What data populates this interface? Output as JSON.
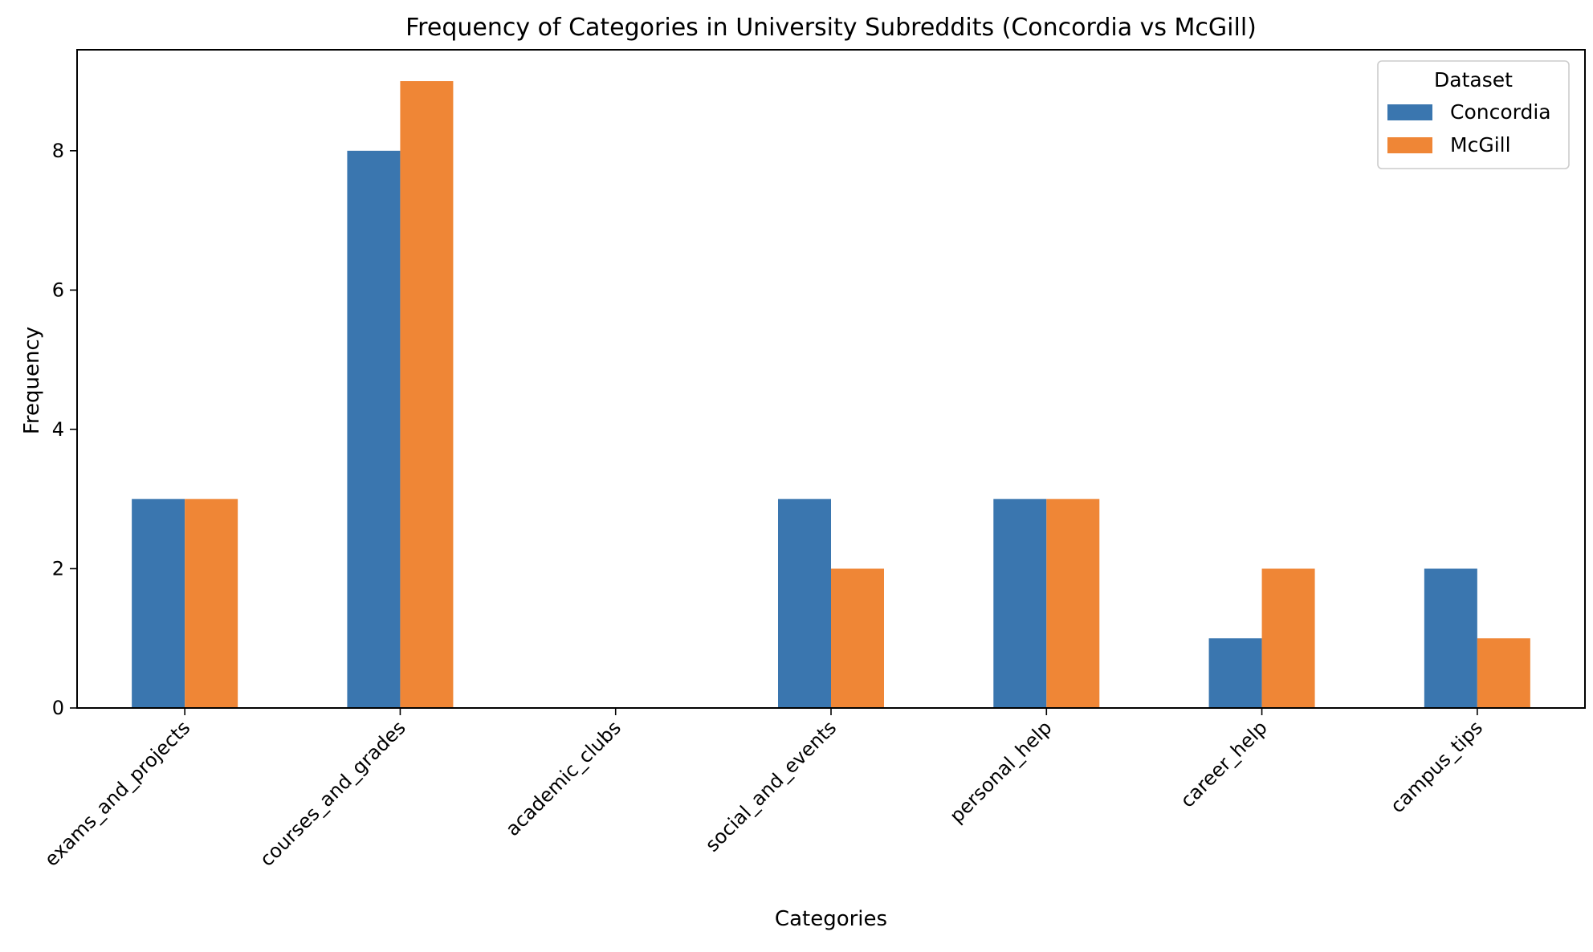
{
  "chart_data": {
    "type": "bar",
    "title": "Frequency of Categories in University Subreddits (Concordia vs McGill)",
    "xlabel": "Categories",
    "ylabel": "Frequency",
    "categories": [
      "exams_and_projects",
      "courses_and_grades",
      "academic_clubs",
      "social_and_events",
      "personal_help",
      "career_help",
      "campus_tips"
    ],
    "series": [
      {
        "name": "Concordia",
        "color": "#3a76af",
        "values": [
          3,
          8,
          0,
          3,
          3,
          1,
          2
        ]
      },
      {
        "name": "McGill",
        "color": "#ef8636",
        "values": [
          3,
          9,
          0,
          2,
          3,
          2,
          1
        ]
      }
    ],
    "ylim": [
      0,
      9.45
    ],
    "yticks": [
      0,
      2,
      4,
      6,
      8
    ],
    "legend": {
      "title": "Dataset",
      "placement": "top-right"
    },
    "grid": false
  }
}
